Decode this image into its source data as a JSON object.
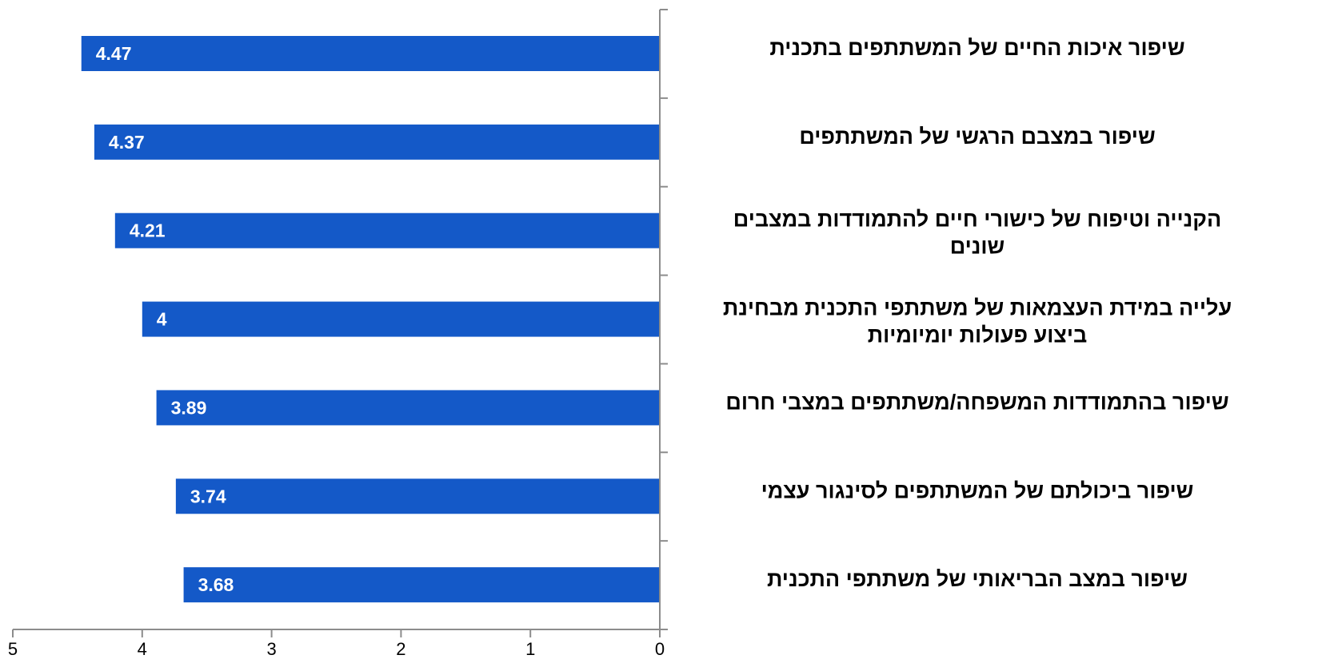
{
  "chart_data": {
    "type": "bar",
    "orientation": "horizontal",
    "x_direction": "reversed",
    "categories": [
      [
        "שיפור איכות החיים של המשתתפים בתכנית"
      ],
      [
        "שיפור במצבם הרגשי של המשתתפים"
      ],
      [
        "הקנייה וטיפוח של כישורי חיים להתמודדות במצבים",
        "שונים"
      ],
      [
        "עלייה במידת העצמאות של משתתפי התכנית מבחינת",
        "ביצוע פעולות יומיומיות"
      ],
      [
        "שיפור בהתמודדות המשפחה/משתתפים במצבי חרום"
      ],
      [
        "שיפור ביכולתם של המשתתפים לסינגור עצמי"
      ],
      [
        "שיפור במצב הבריאותי של משתתפי התכנית"
      ]
    ],
    "values": [
      4.47,
      4.37,
      4.21,
      4,
      3.89,
      3.74,
      3.68
    ],
    "value_labels": [
      "4.47",
      "4.37",
      "4.21",
      "4",
      "3.89",
      "3.74",
      "3.68"
    ],
    "xlim": [
      0,
      5
    ],
    "ticks": [
      "0",
      "1",
      "2",
      "3",
      "4",
      "5"
    ],
    "title": "",
    "xlabel": "",
    "ylabel": "",
    "grid": false,
    "legend": "none",
    "bar_color": "#1459C8",
    "axis_color": "#8C8C8C"
  }
}
